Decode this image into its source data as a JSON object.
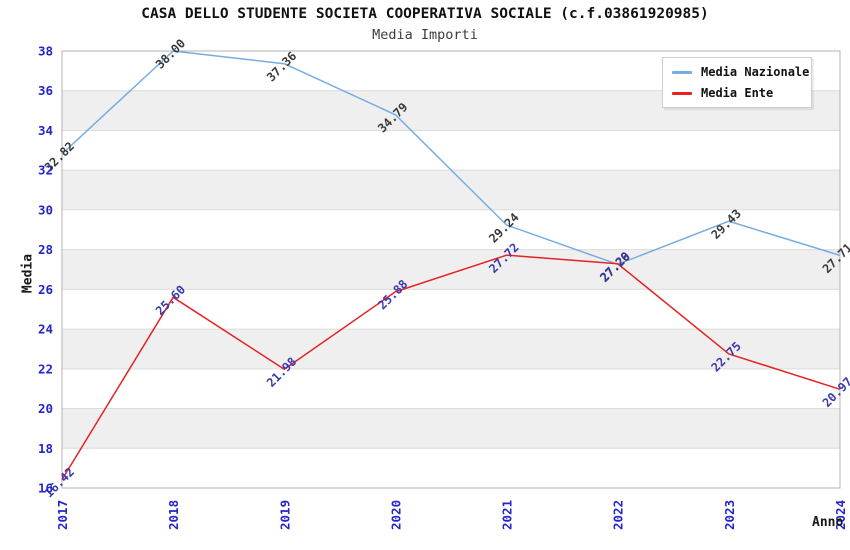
{
  "header": {
    "title": "CASA DELLO STUDENTE SOCIETA COOPERATIVA SOCIALE (c.f.03861920985)",
    "subtitle": "Media Importi"
  },
  "legend": {
    "items": [
      {
        "label": "Media Nazionale",
        "color": "#74ade4"
      },
      {
        "label": "Media Ente",
        "color": "#e62222"
      }
    ]
  },
  "chart_data": {
    "type": "line",
    "x": [
      "2017",
      "2018",
      "2019",
      "2020",
      "2021",
      "2022",
      "2023",
      "2024"
    ],
    "xlabel": "Anno",
    "ylabel": "Media",
    "ylim": [
      16,
      38
    ],
    "ytick_step": 2,
    "yticks": [
      16,
      18,
      20,
      22,
      24,
      26,
      28,
      30,
      32,
      34,
      36,
      38
    ],
    "grid": "horizontal-bands-alternating",
    "legend_position": "top-right",
    "band_color": "#efefef",
    "gridline_color": "#dcdcdc",
    "frame_color": "#b3b3b3",
    "axis_tick_color": "#2424cc",
    "series": [
      {
        "name": "Media Nazionale",
        "line_color": "#74ade4",
        "label_color": "#3a3a3a",
        "values": [
          32.82,
          38.0,
          37.36,
          34.79,
          29.24,
          27.26,
          29.43,
          27.71
        ]
      },
      {
        "name": "Media Ente",
        "line_color": "#e62222",
        "label_color": "#3a3aad",
        "values": [
          16.42,
          25.6,
          21.98,
          25.88,
          27.72,
          27.29,
          22.75,
          20.97
        ]
      }
    ]
  }
}
